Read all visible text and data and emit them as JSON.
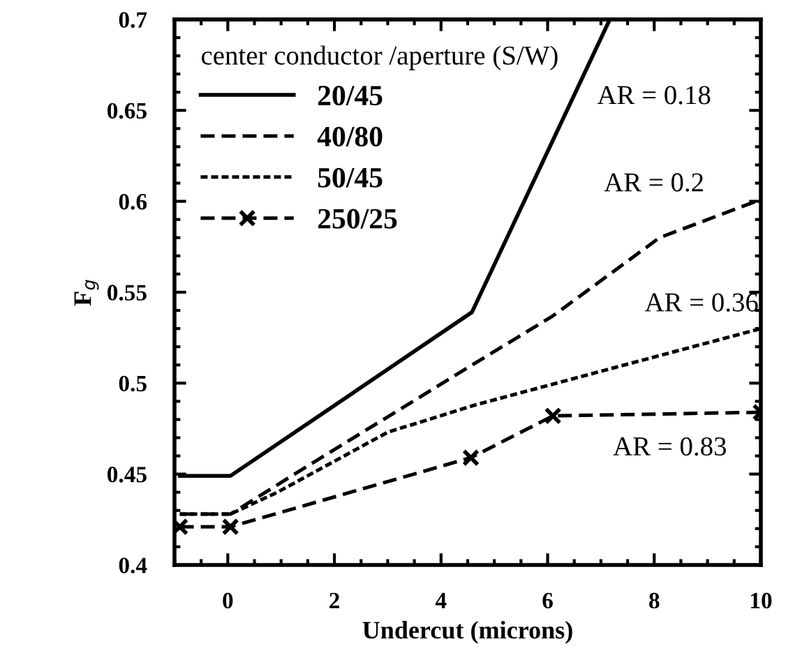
{
  "chart_data": {
    "type": "line",
    "xlabel": "Undercut (microns)",
    "ylabel": "F$_{g}$",
    "legend_title": "center conductor /aperture (S/W)",
    "legend": "top left",
    "xlim": [
      -1,
      10
    ],
    "xticks": [
      0,
      2,
      4,
      6,
      8,
      10
    ],
    "ylim": [
      0.4,
      0.7
    ],
    "yticks": [
      0.4,
      0.45,
      0.5,
      0.55,
      0.6,
      0.65,
      0.7
    ],
    "grid": false,
    "series": [
      {
        "name": "20/45",
        "color": "#000000",
        "line_style": "solid",
        "marker": "none",
        "x": [
          -0.9,
          0.05,
          4.58,
          7.15
        ],
        "values": [
          0.449,
          0.449,
          0.539,
          0.699
        ]
      },
      {
        "name": "40/80",
        "color": "#000000",
        "line_style": "dashed",
        "marker": "none",
        "x": [
          -0.9,
          0.05,
          1.53,
          4.64,
          6.1,
          8.1,
          10
        ],
        "values": [
          0.428,
          0.428,
          0.455,
          0.511,
          0.537,
          0.58,
          0.601
        ]
      },
      {
        "name": "50/45",
        "color": "#000000",
        "line_style": "dotted",
        "marker": "none",
        "x": [
          -0.9,
          0.05,
          0.93,
          3.0,
          4.64,
          7.57,
          10
        ],
        "values": [
          0.428,
          0.428,
          0.44,
          0.473,
          0.488,
          0.511,
          0.53
        ]
      },
      {
        "name": "250/25",
        "color": "#000000",
        "line_style": "dashed",
        "marker": "cross",
        "x": [
          -0.9,
          0.05,
          4.56,
          6.1,
          10
        ],
        "values": [
          0.421,
          0.421,
          0.459,
          0.482,
          0.484
        ]
      }
    ],
    "annotations": [
      "AR = 0.18",
      "AR = 0.2",
      "AR = 0.36",
      "AR = 0.83"
    ]
  }
}
